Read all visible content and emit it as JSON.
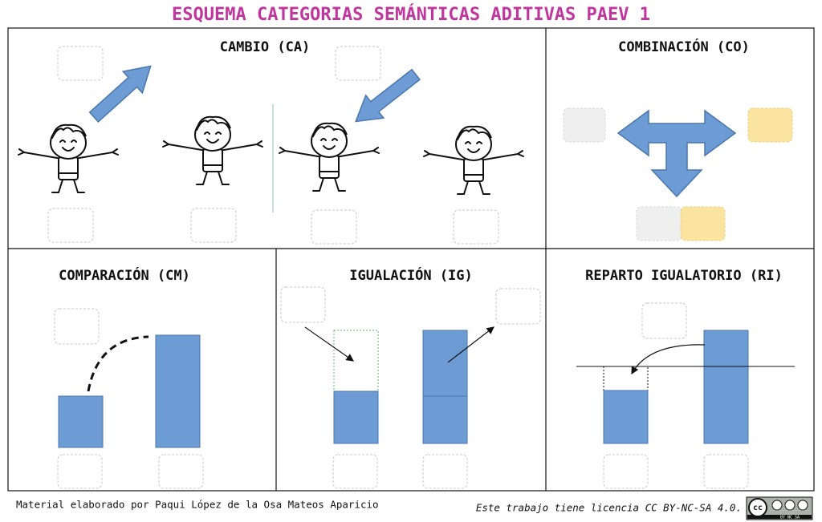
{
  "header": {
    "title": "ESQUEMA CATEGORIAS SEMÁNTICAS ADITIVAS PAEV 1"
  },
  "panels": [
    {
      "title": "CAMBIO (CA)"
    },
    {
      "title": "COMBINACIÓN (CO)"
    },
    {
      "title": "COMPARACIÓN (CM)"
    },
    {
      "title": "IGUALACIÓN (IG)"
    },
    {
      "title": "REPARTO IGUALATORIO (RI)"
    }
  ],
  "footer": {
    "author": "Material elaborado por Paqui López de la Osa Mateos Aparicio",
    "license": "Este trabajo tiene licencia CC BY-NC-SA 4.0.",
    "badge_cc": "cc",
    "badge_terms": "BY  NC  SA"
  }
}
